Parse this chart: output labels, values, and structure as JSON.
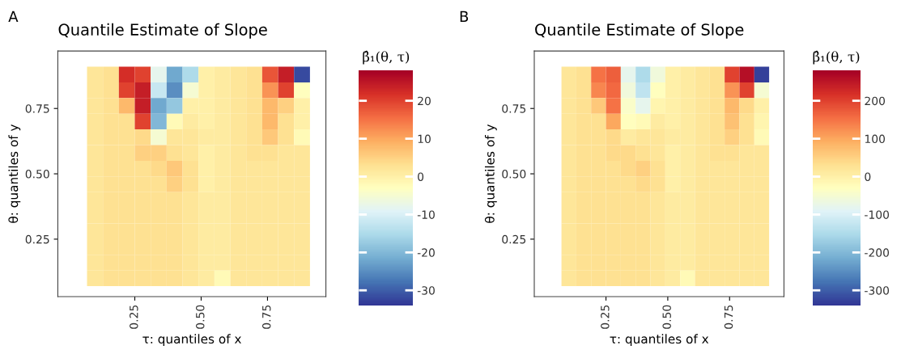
{
  "chart_data": [
    {
      "type": "heatmap",
      "title": "Quantile Estimate of Slope",
      "xlabel": "τ: quantiles of x",
      "ylabel": "θ: quantiles of y",
      "clabel": "β̂₁(θ, τ)",
      "annotations": [
        "A"
      ],
      "x": [
        0.1,
        0.16,
        0.22,
        0.28,
        0.34,
        0.4,
        0.46,
        0.52,
        0.58,
        0.64,
        0.7,
        0.76,
        0.82,
        0.88
      ],
      "y": [
        0.88,
        0.82,
        0.76,
        0.7,
        0.64,
        0.58,
        0.52,
        0.46,
        0.4,
        0.34,
        0.28,
        0.22,
        0.16,
        0.1
      ],
      "cells": [
        [
          2,
          3,
          22,
          20,
          -8,
          -22,
          -15,
          0,
          1,
          2,
          3,
          18,
          24,
          -32
        ],
        [
          2,
          3,
          20,
          24,
          -12,
          -25,
          -5,
          0,
          1,
          2,
          3,
          12,
          20,
          -3
        ],
        [
          2,
          3,
          8,
          24,
          -22,
          -18,
          0,
          0,
          1,
          2,
          3,
          8,
          5,
          0
        ],
        [
          2,
          3,
          3,
          20,
          -20,
          -2,
          1,
          0,
          1,
          2,
          3,
          8,
          3,
          0
        ],
        [
          2,
          3,
          3,
          4,
          -5,
          2,
          2,
          1,
          1,
          2,
          3,
          6,
          3,
          -2
        ],
        [
          2,
          3,
          3,
          5,
          5,
          3,
          2,
          0,
          1,
          2,
          3,
          3,
          2,
          2
        ],
        [
          2,
          3,
          3,
          3,
          4,
          6,
          3,
          0,
          1,
          2,
          2,
          2,
          2,
          2
        ],
        [
          2,
          3,
          3,
          3,
          3,
          5,
          3,
          0,
          1,
          2,
          2,
          2,
          2,
          2
        ],
        [
          2,
          3,
          3,
          3,
          3,
          3,
          2,
          1,
          1,
          2,
          2,
          2,
          2,
          2
        ],
        [
          2,
          3,
          3,
          3,
          3,
          3,
          2,
          1,
          1,
          2,
          2,
          2,
          2,
          2
        ],
        [
          2,
          3,
          3,
          3,
          3,
          3,
          2,
          1,
          1,
          2,
          2,
          2,
          2,
          2
        ],
        [
          2,
          3,
          3,
          3,
          3,
          3,
          2,
          1,
          1,
          2,
          2,
          2,
          2,
          2
        ],
        [
          2,
          3,
          3,
          3,
          3,
          3,
          2,
          1,
          1,
          2,
          2,
          2,
          2,
          2
        ],
        [
          2,
          3,
          3,
          3,
          3,
          3,
          2,
          1,
          -2,
          2,
          2,
          2,
          2,
          2
        ]
      ],
      "clim": [
        -34,
        28
      ],
      "cticks": [
        -30,
        -20,
        -10,
        0,
        10,
        20
      ],
      "xlim": [
        -0.04,
        0.97
      ],
      "ylim": [
        0.03,
        0.97
      ],
      "xticks": [
        {
          "value": 0.25,
          "label": "0.25"
        },
        {
          "value": 0.5,
          "label": "0.50"
        },
        {
          "value": 0.75,
          "label": "0.75"
        }
      ],
      "yticks": [
        {
          "value": 0.25,
          "label": "0.25"
        },
        {
          "value": 0.5,
          "label": "0.50"
        },
        {
          "value": 0.75,
          "label": "0.75"
        }
      ]
    },
    {
      "type": "heatmap",
      "title": "Quantile Estimate of Slope",
      "xlabel": "τ: quantiles of x",
      "ylabel": "θ: quantiles of y",
      "clabel": "β̂₁(θ, τ)",
      "annotations": [
        "B"
      ],
      "x": [
        0.1,
        0.16,
        0.22,
        0.28,
        0.34,
        0.4,
        0.46,
        0.52,
        0.58,
        0.64,
        0.7,
        0.76,
        0.82,
        0.88
      ],
      "y": [
        0.88,
        0.82,
        0.76,
        0.7,
        0.64,
        0.58,
        0.52,
        0.46,
        0.4,
        0.34,
        0.28,
        0.22,
        0.16,
        0.1
      ],
      "cells": [
        [
          20,
          30,
          150,
          170,
          -80,
          -150,
          -60,
          0,
          10,
          20,
          30,
          200,
          260,
          -330
        ],
        [
          20,
          30,
          130,
          160,
          -60,
          -130,
          -30,
          0,
          10,
          20,
          30,
          120,
          200,
          -50
        ],
        [
          20,
          30,
          60,
          150,
          -40,
          -80,
          -10,
          0,
          10,
          20,
          30,
          80,
          40,
          0
        ],
        [
          20,
          30,
          30,
          100,
          -30,
          -20,
          10,
          0,
          10,
          20,
          30,
          70,
          30,
          -10
        ],
        [
          20,
          30,
          30,
          40,
          10,
          20,
          20,
          10,
          10,
          20,
          30,
          50,
          30,
          -20
        ],
        [
          20,
          30,
          30,
          40,
          40,
          30,
          20,
          0,
          10,
          20,
          30,
          30,
          20,
          20
        ],
        [
          20,
          30,
          30,
          30,
          40,
          50,
          30,
          0,
          10,
          20,
          20,
          20,
          20,
          20
        ],
        [
          20,
          30,
          30,
          30,
          30,
          40,
          30,
          0,
          10,
          20,
          20,
          20,
          20,
          20
        ],
        [
          20,
          30,
          30,
          30,
          30,
          30,
          20,
          10,
          10,
          20,
          20,
          20,
          20,
          20
        ],
        [
          20,
          30,
          30,
          30,
          30,
          30,
          20,
          10,
          10,
          20,
          20,
          20,
          20,
          20
        ],
        [
          20,
          30,
          30,
          30,
          30,
          30,
          20,
          10,
          10,
          20,
          20,
          20,
          20,
          20
        ],
        [
          20,
          30,
          30,
          30,
          30,
          30,
          20,
          10,
          10,
          20,
          20,
          20,
          20,
          20
        ],
        [
          20,
          30,
          30,
          30,
          30,
          30,
          20,
          10,
          10,
          20,
          20,
          20,
          20,
          20
        ],
        [
          20,
          30,
          30,
          30,
          30,
          30,
          20,
          10,
          -20,
          20,
          20,
          20,
          20,
          20
        ]
      ],
      "clim": [
        -340,
        280
      ],
      "cticks": [
        -300,
        -200,
        -100,
        0,
        100,
        200
      ],
      "xlim": [
        -0.04,
        0.97
      ],
      "ylim": [
        0.03,
        0.97
      ],
      "xticks": [
        {
          "value": 0.25,
          "label": "0.25"
        },
        {
          "value": 0.5,
          "label": "0.50"
        },
        {
          "value": 0.75,
          "label": "0.75"
        }
      ],
      "yticks": [
        {
          "value": 0.25,
          "label": "0.25"
        },
        {
          "value": 0.5,
          "label": "0.50"
        },
        {
          "value": 0.75,
          "label": "0.75"
        }
      ]
    }
  ]
}
